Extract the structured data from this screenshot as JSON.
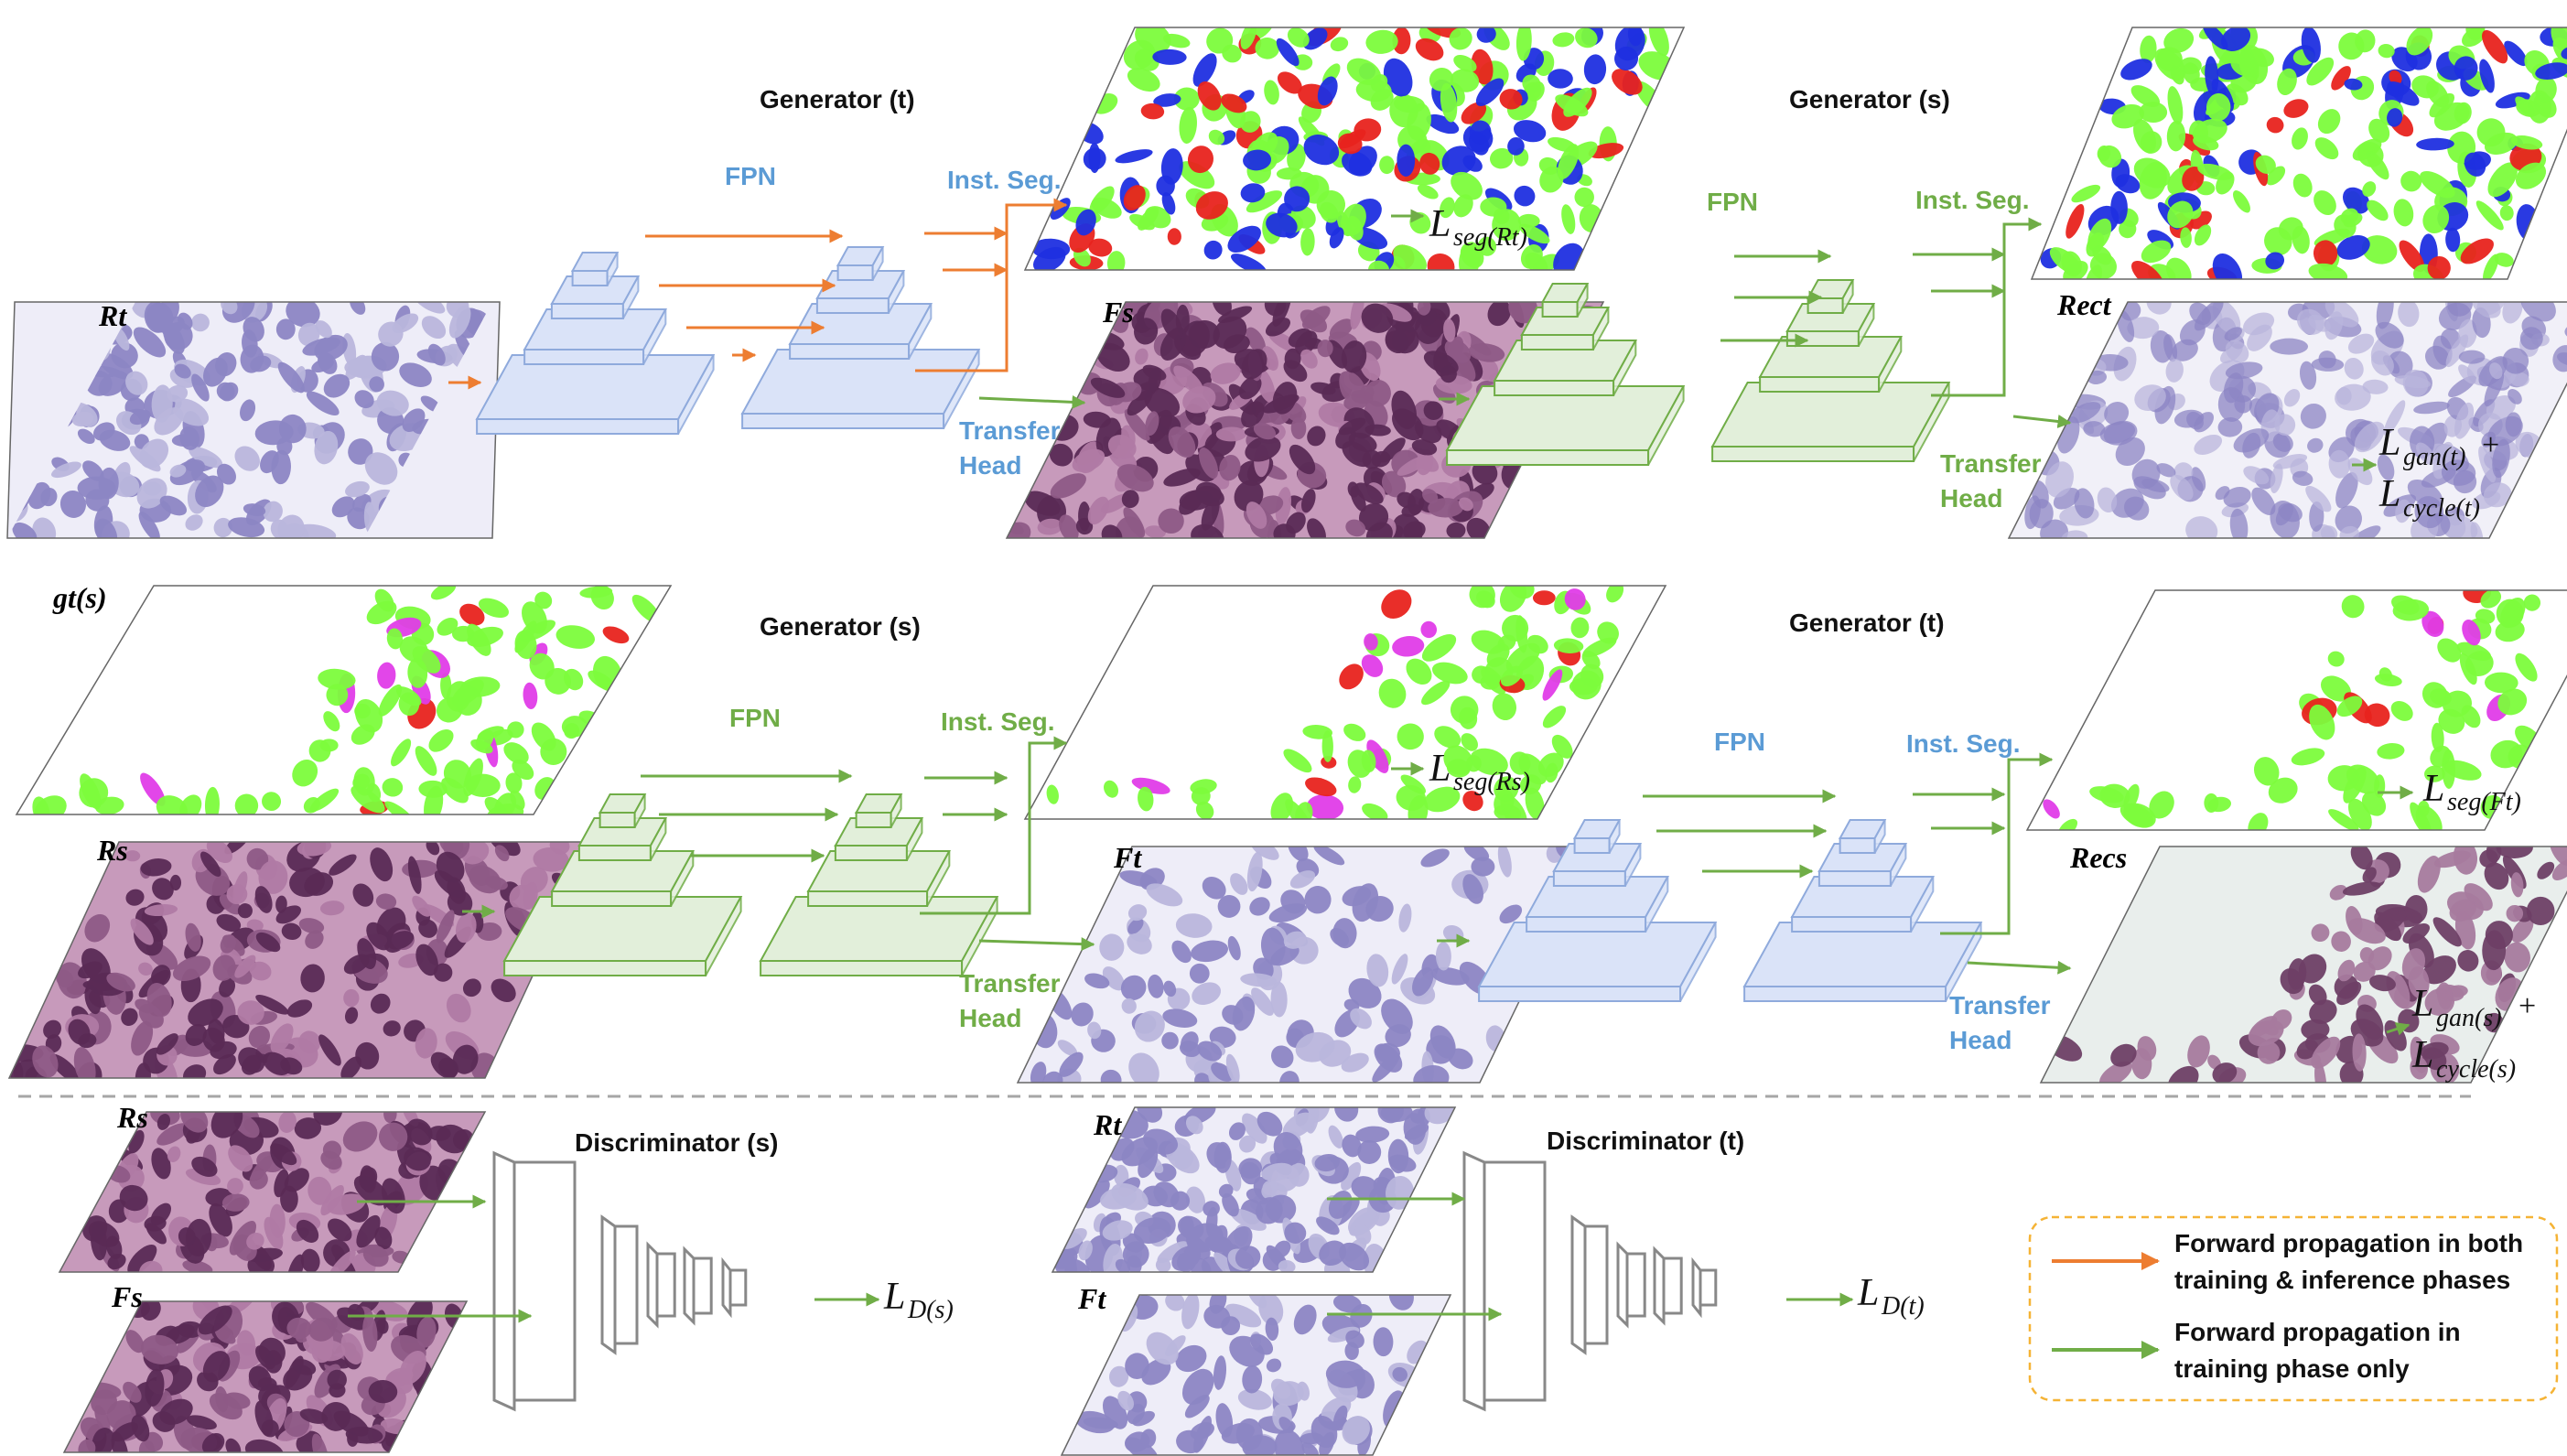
{
  "colors": {
    "orange": "#ED7D31",
    "green": "#70AD47",
    "blue_text": "#5B9BD5",
    "green_text": "#70AD47",
    "blue_fill": "#DAE3F8",
    "blue_stroke": "#8FAADC",
    "green_fill": "#E2EFDA",
    "green_stroke": "#70AD47",
    "legend_border": "#F5B335",
    "nuclei_green": "#7CFC3C",
    "nuclei_blue": "#1F2FE0",
    "nuclei_red": "#E8231E",
    "nuclei_magenta": "#E03CE8",
    "he_purple": "#7A3E6E",
    "ihc_lavender": "#B9B6DC"
  },
  "row1": {
    "input_label": "Rt",
    "gen1_title": "Generator (t)",
    "gen1_fpn": "FPN",
    "gen1_seg": "Inst. Seg.",
    "gen1_transfer_1": "Transfer",
    "gen1_transfer_2": "Head",
    "mid_label": "Fs",
    "loss_seg_main": "L",
    "loss_seg_sub": "seg(Rt)",
    "gen2_title": "Generator (s)",
    "gen2_fpn": "FPN",
    "gen2_seg": "Inst. Seg.",
    "gen2_transfer_1": "Transfer",
    "gen2_transfer_2": "Head",
    "rec_label": "Rect",
    "loss_gan_main": "L",
    "loss_gan_sub": "gan(t)",
    "loss_plus": "+",
    "loss_cycle_main": "L",
    "loss_cycle_sub": "cycle(t)"
  },
  "row2": {
    "gt_label": "gt(s)",
    "input_label": "Rs",
    "gen1_title": "Generator (s)",
    "gen1_fpn": "FPN",
    "gen1_seg": "Inst. Seg.",
    "gen1_transfer_1": "Transfer",
    "gen1_transfer_2": "Head",
    "mid_label": "Ft",
    "loss_seg_main": "L",
    "loss_seg_sub": "seg(Rs)",
    "gen2_title": "Generator (t)",
    "gen2_fpn": "FPN",
    "gen2_seg": "Inst. Seg.",
    "gen2_transfer_1": "Transfer",
    "gen2_transfer_2": "Head",
    "rec_label": "Recs",
    "loss_seg2_main": "L",
    "loss_seg2_sub": "seg(Ft)",
    "loss_gan_main": "L",
    "loss_gan_sub": "gan(s)",
    "loss_plus": "+",
    "loss_cycle_main": "L",
    "loss_cycle_sub": "cycle(s)"
  },
  "row3": {
    "left_top_label": "Rs",
    "left_bottom_label": "Fs",
    "disc1_title": "Discriminator (s)",
    "loss_d1_main": "L",
    "loss_d1_sub": "D(s)",
    "right_top_label": "Rt",
    "right_bottom_label": "Ft",
    "disc2_title": "Discriminator (t)",
    "loss_d2_main": "L",
    "loss_d2_sub": "D(t)"
  },
  "legend": {
    "orange_line1": "Forward propagation in both",
    "orange_line2": "training & inference phases",
    "green_line1": "Forward propagation in",
    "green_line2": "training phase only"
  }
}
